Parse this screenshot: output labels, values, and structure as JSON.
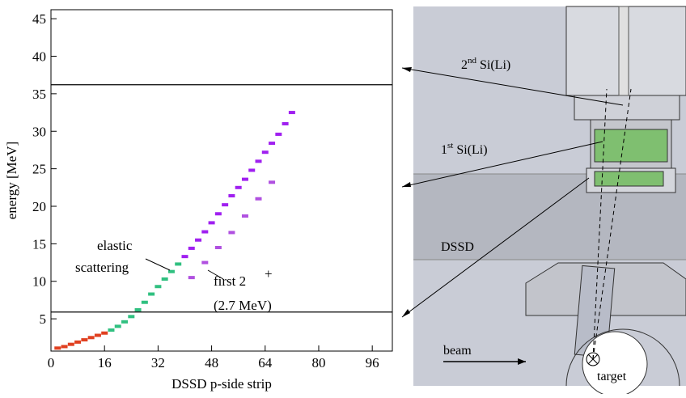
{
  "chart_data": {
    "type": "scatter",
    "xlabel": "DSSD p-side strip",
    "ylabel": "energy [MeV]",
    "xlim": [
      0,
      102
    ],
    "ylim": [
      0.7,
      46.2
    ],
    "xticks": [
      0,
      16,
      32,
      48,
      64,
      80,
      96
    ],
    "yticks": [
      5,
      10,
      15,
      20,
      25,
      30,
      35,
      40,
      45
    ],
    "hlines": [
      36.2,
      5.9
    ],
    "series": [
      {
        "color": "#e04020",
        "x": [
          2,
          4,
          6,
          8,
          10,
          12,
          14,
          16
        ],
        "values": [
          1.1,
          1.3,
          1.6,
          1.9,
          2.2,
          2.5,
          2.8,
          3.1
        ]
      },
      {
        "color": "#30c080",
        "x": [
          18,
          20,
          22,
          24,
          26,
          28,
          30,
          32,
          34,
          36,
          38
        ],
        "values": [
          3.5,
          4.0,
          4.6,
          5.3,
          6.2,
          7.2,
          8.3,
          9.3,
          10.3,
          11.3,
          12.3
        ]
      },
      {
        "color": "#a020f0",
        "x": [
          40,
          42,
          44,
          46,
          48,
          50,
          52,
          54,
          56,
          58,
          60,
          62,
          64,
          66,
          68,
          70,
          72
        ],
        "values": [
          13.3,
          14.4,
          15.5,
          16.6,
          17.8,
          19.0,
          20.2,
          21.4,
          22.5,
          23.6,
          24.8,
          26.0,
          27.2,
          28.4,
          29.6,
          31.0,
          32.5
        ]
      },
      {
        "color": "#b050e0",
        "x": [
          42,
          46,
          50,
          54,
          58,
          62,
          66
        ],
        "values": [
          10.5,
          12.5,
          14.5,
          16.5,
          18.7,
          21.0,
          23.2
        ]
      }
    ],
    "annotations": [
      "elastic",
      "scattering",
      "first 2",
      "+",
      "(2.7 MeV)"
    ]
  },
  "drawing": {
    "labels": [
      {
        "base": "2",
        "sup": "nd",
        "rest": " Si(Li)"
      },
      {
        "base": "1",
        "sup": "st",
        "rest": " Si(Li)"
      },
      {
        "base": "DSSD"
      },
      {
        "base": "beam"
      },
      {
        "base": "target"
      }
    ]
  }
}
